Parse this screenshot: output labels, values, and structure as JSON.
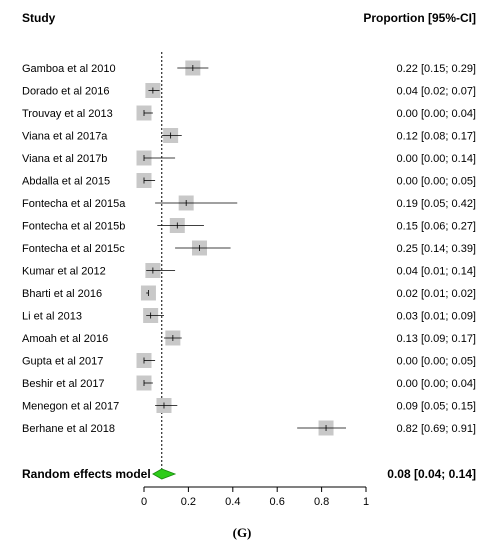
{
  "chart_data": {
    "type": "forest",
    "header_study": "Study",
    "header_value": "Proportion [95%-CI]",
    "xlim": [
      0,
      1
    ],
    "x_ticks": [
      0,
      0.2,
      0.4,
      0.6,
      0.8,
      1
    ],
    "x_tick_labels": [
      "0",
      "0.2",
      "0.4",
      "0.6",
      "0.8",
      "1"
    ],
    "reference_line": 0.08,
    "studies": [
      {
        "label": "Gamboa et al 2010",
        "est": 0.22,
        "lo": 0.15,
        "hi": 0.29,
        "text": "0.22 [0.15; 0.29]"
      },
      {
        "label": "Dorado et al 2016",
        "est": 0.04,
        "lo": 0.02,
        "hi": 0.07,
        "text": "0.04 [0.02; 0.07]"
      },
      {
        "label": "Trouvay et al 2013",
        "est": 0.0,
        "lo": 0.0,
        "hi": 0.04,
        "text": "0.00 [0.00; 0.04]"
      },
      {
        "label": "Viana et al 2017a",
        "est": 0.12,
        "lo": 0.08,
        "hi": 0.17,
        "text": "0.12 [0.08; 0.17]"
      },
      {
        "label": "Viana et al 2017b",
        "est": 0.0,
        "lo": 0.0,
        "hi": 0.14,
        "text": "0.00 [0.00; 0.14]"
      },
      {
        "label": "Abdalla et al 2015",
        "est": 0.0,
        "lo": 0.0,
        "hi": 0.05,
        "text": "0.00 [0.00; 0.05]"
      },
      {
        "label": "Fontecha et al 2015a",
        "est": 0.19,
        "lo": 0.05,
        "hi": 0.42,
        "text": "0.19 [0.05; 0.42]"
      },
      {
        "label": "Fontecha et al 2015b",
        "est": 0.15,
        "lo": 0.06,
        "hi": 0.27,
        "text": "0.15 [0.06; 0.27]"
      },
      {
        "label": "Fontecha et al 2015c",
        "est": 0.25,
        "lo": 0.14,
        "hi": 0.39,
        "text": "0.25 [0.14; 0.39]"
      },
      {
        "label": "Kumar et al 2012",
        "est": 0.04,
        "lo": 0.01,
        "hi": 0.14,
        "text": "0.04 [0.01; 0.14]"
      },
      {
        "label": "Bharti et al 2016",
        "est": 0.02,
        "lo": 0.01,
        "hi": 0.02,
        "text": "0.02 [0.01; 0.02]"
      },
      {
        "label": "Li et al 2013",
        "est": 0.03,
        "lo": 0.01,
        "hi": 0.09,
        "text": "0.03 [0.01; 0.09]"
      },
      {
        "label": "Amoah et al 2016",
        "est": 0.13,
        "lo": 0.09,
        "hi": 0.17,
        "text": "0.13 [0.09; 0.17]"
      },
      {
        "label": "Gupta et al 2017",
        "est": 0.0,
        "lo": 0.0,
        "hi": 0.05,
        "text": "0.00 [0.00; 0.05]"
      },
      {
        "label": "Beshir et al 2017",
        "est": 0.0,
        "lo": 0.0,
        "hi": 0.04,
        "text": "0.00 [0.00; 0.04]"
      },
      {
        "label": "Menegon et al 2017",
        "est": 0.09,
        "lo": 0.05,
        "hi": 0.15,
        "text": "0.09 [0.05; 0.15]"
      },
      {
        "label": "Berhane et al 2018",
        "est": 0.82,
        "lo": 0.69,
        "hi": 0.91,
        "text": "0.82 [0.69; 0.91]"
      }
    ],
    "summary": {
      "label": "Random effects model",
      "est": 0.08,
      "lo": 0.04,
      "hi": 0.14,
      "text": "0.08 [0.04; 0.14]"
    },
    "colors": {
      "box": "#c8c8c8",
      "diamond_fill": "#2ecc1a",
      "diamond_stroke": "#1a8a10",
      "line": "#000000"
    }
  },
  "panel_label": "(G)"
}
